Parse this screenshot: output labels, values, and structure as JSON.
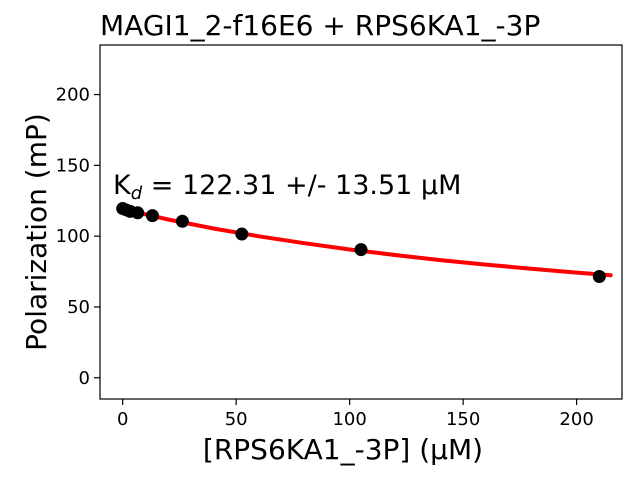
{
  "chart_data": {
    "type": "scatter",
    "title": "MAGI1_2-f16E6 + RPS6KA1_-3P",
    "xlabel": "[RPS6KA1_-3P] (μM)",
    "ylabel": "Polarization (mP)",
    "xlim": [
      -10,
      220
    ],
    "ylim": [
      -15,
      235
    ],
    "xticks": [
      0,
      50,
      100,
      150,
      200
    ],
    "yticks": [
      0,
      50,
      100,
      150,
      200
    ],
    "grid": false,
    "annotation": {
      "prefix": "K",
      "subscript": "d",
      "text": " = 122.31 +/- 13.51 μM"
    },
    "series": [
      {
        "kind": "points",
        "color": "#000000",
        "x": [
          0,
          1.6,
          3.3,
          6.6,
          13.1,
          26.3,
          52.5,
          105,
          210
        ],
        "y": [
          119.5,
          118.5,
          117.5,
          116.5,
          114.5,
          110.5,
          101.5,
          90.5,
          71.5
        ]
      },
      {
        "kind": "fit",
        "color": "#ff0000",
        "x": [
          0,
          20,
          40,
          60,
          80,
          100,
          120,
          140,
          160,
          180,
          200,
          215
        ],
        "y": [
          119.2,
          111.8,
          105.4,
          99.9,
          95.0,
          90.6,
          86.7,
          83.1,
          79.9,
          77.0,
          74.3,
          72.4
        ]
      }
    ]
  }
}
